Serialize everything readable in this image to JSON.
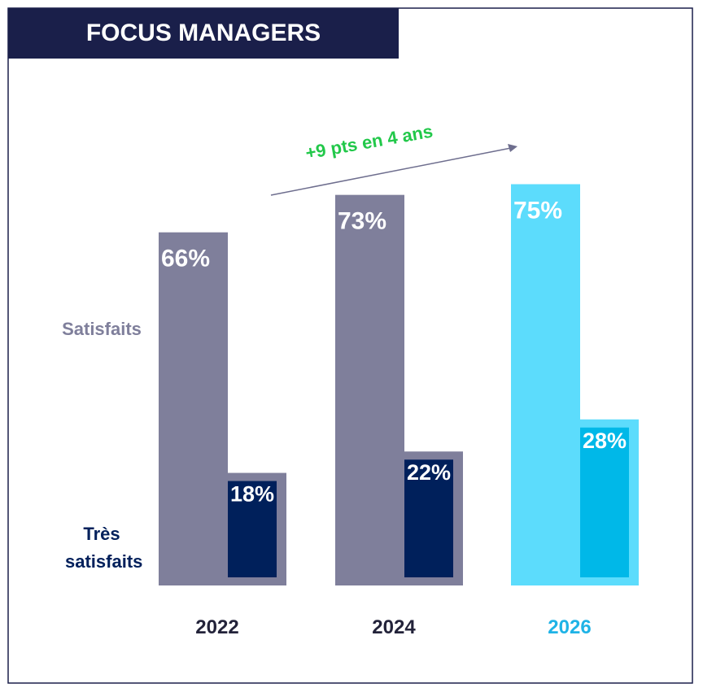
{
  "chart_data": {
    "type": "bar",
    "title": "FOCUS MANAGERS",
    "annotation": "+9 pts en 4 ans",
    "categories": [
      "2022",
      "2024",
      "2026"
    ],
    "category_colors": [
      "#23233a",
      "#23233a",
      "#1fb3e6"
    ],
    "ylim": [
      0,
      100
    ],
    "series": [
      {
        "name": "Satisfaits",
        "color": "#7f7f9b",
        "colors": [
          "#7f7f9b",
          "#7f7f9b",
          "#5cdcfc"
        ],
        "values": [
          66,
          73,
          75
        ],
        "value_labels": [
          "66%",
          "73%",
          "75%"
        ]
      },
      {
        "name": "Très satisfaits",
        "color": "#00205b",
        "colors": [
          "#00205b",
          "#00205b",
          "#00b8e8"
        ],
        "values": [
          18,
          22,
          28
        ],
        "value_labels": [
          "18%",
          "22%",
          "28%"
        ]
      }
    ]
  }
}
